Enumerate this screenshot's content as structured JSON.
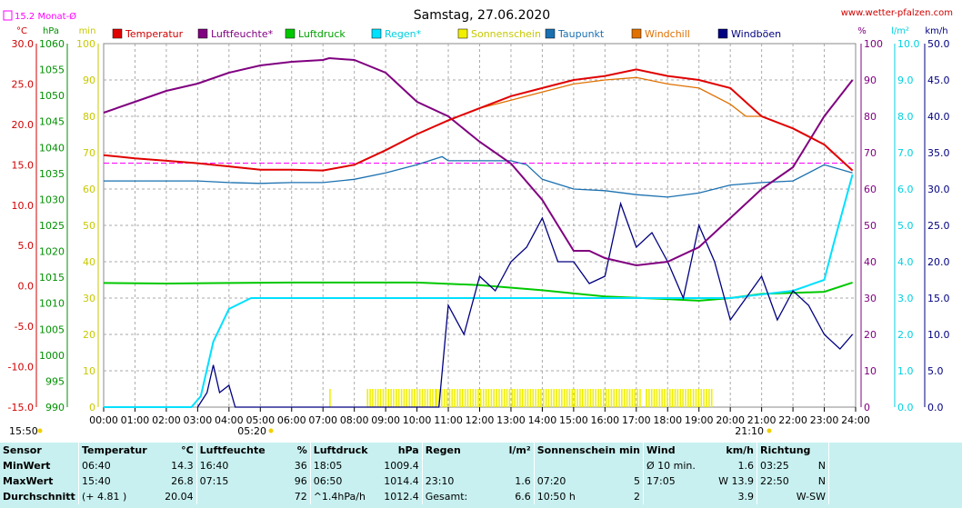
{
  "header": {
    "title": "Samstag, 27.06.2020",
    "website": "www.wetter-pfalzen.com",
    "monthly_avg": "15.2 Monat-Ø"
  },
  "units": {
    "left": [
      "°C",
      "hPa",
      "min"
    ],
    "right": [
      "%",
      "l/m²",
      "km/h"
    ]
  },
  "legend": [
    "Temperatur",
    "Luftfeuchte*",
    "Luftdruck",
    "Regen*",
    "Sonnenschein",
    "Taupunkt",
    "Windchill",
    "Windböen"
  ],
  "sun_times": {
    "start": "15:50",
    "sunrise": "05:20",
    "sunset": "21:10"
  },
  "chart_data": {
    "type": "line",
    "title": "Samstag, 27.06.2020",
    "x": [
      "00:00",
      "01:00",
      "02:00",
      "03:00",
      "04:00",
      "05:00",
      "06:00",
      "07:00",
      "08:00",
      "09:00",
      "10:00",
      "11:00",
      "12:00",
      "13:00",
      "14:00",
      "15:00",
      "16:00",
      "17:00",
      "18:00",
      "19:00",
      "20:00",
      "21:00",
      "22:00",
      "23:00",
      "24:00"
    ],
    "axes": {
      "temperature_c": {
        "range": [
          -15,
          30
        ],
        "ticks": [
          "-15.0",
          "-10.0",
          "-5.0",
          "0.0",
          "5.0",
          "10.0",
          "15.0",
          "20.0",
          "25.0",
          "30.0"
        ]
      },
      "pressure_hpa": {
        "range": [
          990,
          1060
        ],
        "ticks": [
          "990",
          "995",
          "1000",
          "1005",
          "1010",
          "1015",
          "1020",
          "1025",
          "1030",
          "1035",
          "1040",
          "1045",
          "1050",
          "1055",
          "1060"
        ]
      },
      "sunshine_min": {
        "range": [
          0,
          100
        ],
        "ticks": [
          "0",
          "10",
          "20",
          "30",
          "40",
          "50",
          "60",
          "70",
          "80",
          "90",
          "100"
        ]
      },
      "humidity_pct": {
        "range": [
          0,
          100
        ],
        "ticks": [
          "0",
          "10",
          "20",
          "30",
          "40",
          "50",
          "60",
          "70",
          "80",
          "90",
          "100"
        ]
      },
      "rain_lm2": {
        "range": [
          0,
          10
        ],
        "ticks": [
          "0.0",
          "1.0",
          "2.0",
          "3.0",
          "4.0",
          "5.0",
          "6.0",
          "7.0",
          "8.0",
          "9.0",
          "10.0"
        ]
      },
      "wind_kmh": {
        "range": [
          0,
          50
        ],
        "ticks": [
          "0.0",
          "5.0",
          "10.0",
          "15.0",
          "20.0",
          "25.0",
          "30.0",
          "35.0",
          "40.0",
          "45.0",
          "50.0"
        ]
      }
    },
    "monthly_avg_temp": 15.2,
    "series": [
      {
        "name": "Temperatur",
        "color": "#e00000",
        "axis": "temperature_c",
        "x": [
          0,
          1,
          2,
          3,
          4,
          5,
          6,
          7,
          8,
          9,
          10,
          11,
          12,
          13,
          14,
          15,
          16,
          17,
          18,
          19,
          20,
          21,
          22,
          23,
          23.9
        ],
        "values": [
          16.2,
          15.8,
          15.5,
          15.2,
          14.8,
          14.4,
          14.4,
          14.3,
          15.0,
          16.8,
          18.8,
          20.5,
          22.0,
          23.5,
          24.5,
          25.5,
          26.0,
          26.8,
          26.0,
          25.5,
          24.5,
          21.0,
          19.5,
          17.5,
          14.3
        ]
      },
      {
        "name": "Luftfeuchte*",
        "color": "#800080",
        "axis": "humidity_pct",
        "x": [
          0,
          1,
          2,
          3,
          4,
          5,
          6,
          7,
          7.2,
          8,
          9,
          10,
          11,
          12,
          13,
          14,
          14.5,
          15,
          15.5,
          16,
          17,
          18,
          19,
          20,
          21,
          22,
          23,
          23.9
        ],
        "values": [
          81,
          84,
          87,
          89,
          92,
          94,
          95,
          95.5,
          96,
          95.5,
          92,
          84,
          80,
          73,
          67,
          57,
          50,
          43,
          43,
          41,
          39,
          40,
          44,
          52,
          60,
          66,
          80,
          90
        ]
      },
      {
        "name": "Luftdruck",
        "color": "#00c800",
        "axis": "pressure_hpa",
        "x": [
          0,
          2,
          4,
          6,
          8,
          10,
          12,
          14,
          16,
          18,
          19,
          20,
          21,
          22,
          23,
          23.9
        ],
        "values": [
          1013.9,
          1013.8,
          1013.9,
          1014.0,
          1014.0,
          1014.0,
          1013.5,
          1012.5,
          1011.3,
          1010.8,
          1010.5,
          1011.0,
          1011.8,
          1012.0,
          1012.2,
          1014.0
        ]
      },
      {
        "name": "Regen*",
        "color": "#00e0ff",
        "axis": "rain_lm2",
        "x": [
          0,
          2.8,
          3.1,
          3.5,
          4.0,
          4.7,
          5.0,
          6.0,
          20.0,
          21.0,
          22.0,
          23.0,
          23.3,
          23.9
        ],
        "values": [
          0,
          0,
          0.3,
          1.8,
          2.7,
          3.0,
          3.0,
          3.0,
          3.0,
          3.1,
          3.2,
          3.5,
          4.5,
          6.4
        ]
      },
      {
        "name": "Taupunkt",
        "color": "#1a70b0",
        "axis": "temperature_c",
        "x": [
          0,
          1,
          2,
          3,
          4,
          5,
          6,
          7,
          8,
          9,
          10,
          10.8,
          11,
          12,
          13,
          13.5,
          14,
          15,
          16,
          17,
          18,
          19,
          20,
          21,
          22,
          23,
          23.9
        ],
        "values": [
          13.0,
          13.0,
          13.0,
          13.0,
          12.8,
          12.7,
          12.8,
          12.8,
          13.2,
          14.0,
          15.0,
          16.0,
          15.5,
          15.5,
          15.5,
          15.0,
          13.2,
          12.0,
          11.8,
          11.3,
          11.0,
          11.5,
          12.5,
          12.8,
          13.0,
          15.0,
          14.0
        ]
      },
      {
        "name": "Windchill",
        "color": "#e07000",
        "axis": "temperature_c",
        "x": [
          0,
          1,
          2,
          3,
          4,
          5,
          6,
          7,
          8,
          9,
          10,
          11,
          12,
          13,
          14,
          15,
          16,
          17,
          18,
          19,
          20,
          20.5,
          21,
          22,
          23,
          23.9
        ],
        "values": [
          16.2,
          15.8,
          15.5,
          15.2,
          14.8,
          14.4,
          14.4,
          14.3,
          15.0,
          16.8,
          18.8,
          20.5,
          22.0,
          23.0,
          24.0,
          25.0,
          25.5,
          25.8,
          25.0,
          24.5,
          22.5,
          21.0,
          21.0,
          19.5,
          17.5,
          14.3
        ]
      },
      {
        "name": "Windböen",
        "color": "#000080",
        "axis": "wind_kmh",
        "x": [
          3.0,
          3.3,
          3.5,
          3.7,
          4.0,
          4.2,
          4.5,
          10.7,
          11.0,
          11.5,
          12.0,
          12.5,
          13.0,
          13.5,
          14.0,
          14.5,
          15.0,
          15.5,
          16.0,
          16.5,
          17.0,
          17.5,
          18.0,
          18.5,
          19.0,
          19.5,
          20.0,
          20.5,
          21.0,
          21.5,
          22.0,
          22.5,
          23.0,
          23.5,
          23.9
        ],
        "values": [
          0,
          2,
          5.8,
          2,
          3,
          0,
          0,
          0,
          14,
          10,
          18,
          16,
          20,
          22,
          26,
          20,
          20,
          17,
          18,
          28,
          22,
          24,
          20,
          15,
          25,
          20,
          12,
          15,
          18,
          12,
          16,
          14,
          10,
          8,
          10
        ]
      }
    ],
    "sunshine": {
      "name": "Sonnenschein",
      "color": "#f0f000",
      "spans": [
        [
          7.2,
          7.25
        ],
        [
          8.4,
          10.6
        ],
        [
          10.6,
          17.1
        ],
        [
          17.3,
          19.4
        ]
      ],
      "value": 5,
      "extra": [
        [
          5.25,
          5.3
        ]
      ]
    }
  },
  "stats": {
    "headers": [
      "Sensor",
      "Temperatur",
      "°C",
      "Luftfeuchte",
      "%",
      "Luftdruck",
      "hPa",
      "Regen",
      "l/m²",
      "Sonnenschein min",
      "Wind",
      "km/h",
      "Richtung"
    ],
    "rows": [
      {
        "label": "MinWert",
        "t_time": "06:40",
        "t_val": "14.3",
        "h_time": "16:40",
        "h_val": "36",
        "p_time": "18:05",
        "p_val": "1009.4",
        "r_time": "",
        "r_val": "",
        "s_time": "",
        "s_val": "",
        "w_time": "Ø 10 min.",
        "w_val": "1.6",
        "d_time": "03:25",
        "d_val": "N"
      },
      {
        "label": "MaxWert",
        "t_time": "15:40",
        "t_val": "26.8",
        "h_time": "07:15",
        "h_val": "96",
        "p_time": "06:50",
        "p_val": "1014.4",
        "r_time": "23:10",
        "r_val": "1.6",
        "s_time": "07:20",
        "s_val": "5",
        "w_time": "17:05",
        "w_val": "W 13.9",
        "d_time": "22:50",
        "d_val": "N"
      },
      {
        "label": "Durchschnitt",
        "t_time": "(+ 4.81 )",
        "t_val": "20.04",
        "h_time": "",
        "h_val": "72",
        "p_time": "^1.4hPa/h",
        "p_val": "1012.4",
        "r_time": "Gesamt:",
        "r_val": "6.6",
        "s_time": "10:50 h",
        "s_val": "2",
        "w_time": "",
        "w_val": "3.9",
        "d_time": "",
        "d_val": "W-SW"
      }
    ]
  }
}
